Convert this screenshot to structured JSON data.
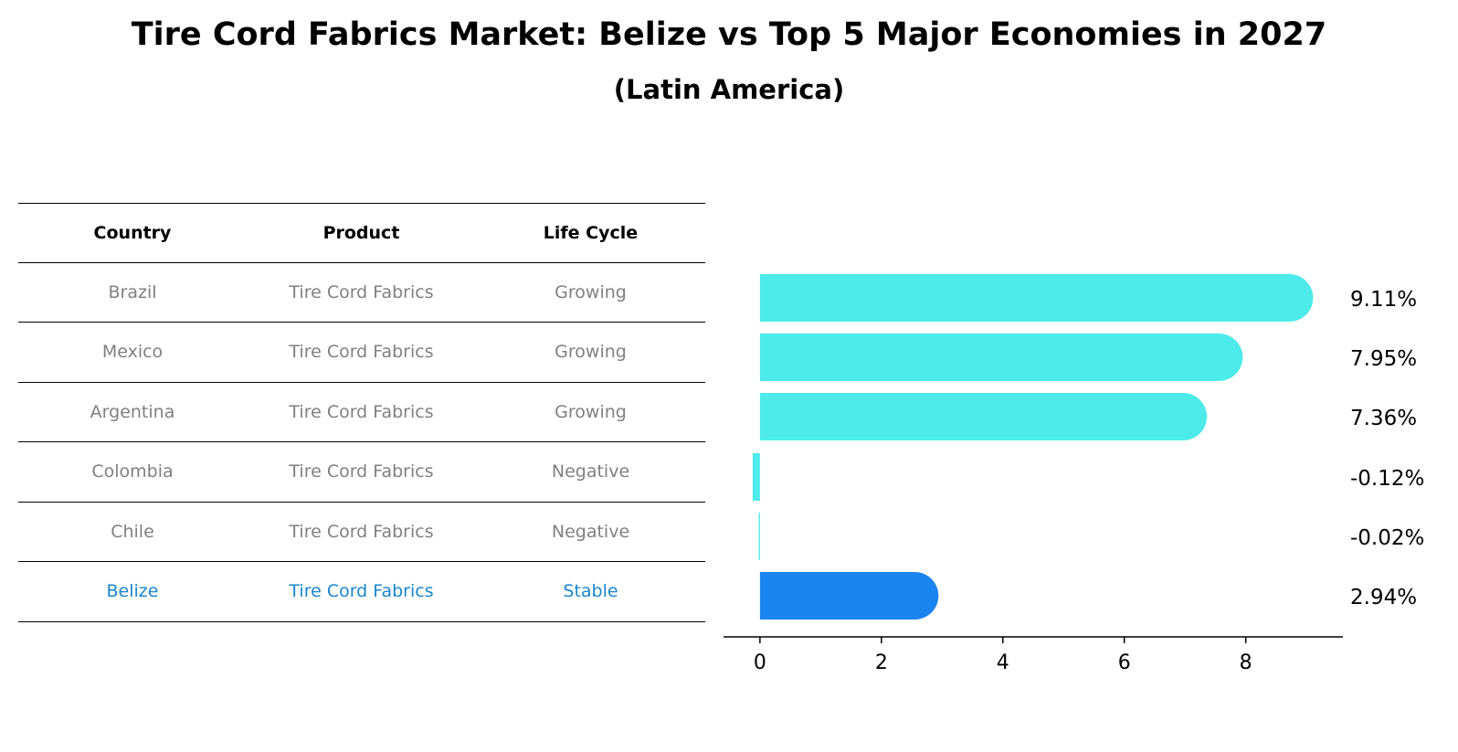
{
  "title": "Tire Cord Fabrics Market: Belize vs Top 5 Major Economies in 2027",
  "subtitle": "(Latin America)",
  "table": {
    "headers": [
      "Country",
      "Product",
      "Life Cycle"
    ],
    "rows": [
      {
        "country": "Brazil",
        "product": "Tire Cord Fabrics",
        "life_cycle": "Growing"
      },
      {
        "country": "Mexico",
        "product": "Tire Cord Fabrics",
        "life_cycle": "Growing"
      },
      {
        "country": "Argentina",
        "product": "Tire Cord Fabrics",
        "life_cycle": "Growing"
      },
      {
        "country": "Colombia",
        "product": "Tire Cord Fabrics",
        "life_cycle": "Negative"
      },
      {
        "country": "Chile",
        "product": "Tire Cord Fabrics",
        "life_cycle": "Negative"
      },
      {
        "country": "Belize",
        "product": "Tire Cord Fabrics",
        "life_cycle": "Stable"
      }
    ]
  },
  "colors": {
    "header_text": "#000000",
    "row_text": "#808080",
    "highlight_text": "#1a87cc",
    "bar_default": "#4deaea",
    "bar_highlight": "#1a84f0"
  },
  "chart_data": {
    "type": "bar",
    "orientation": "horizontal",
    "categories": [
      "Brazil",
      "Mexico",
      "Argentina",
      "Colombia",
      "Chile",
      "Belize"
    ],
    "values": [
      9.11,
      7.95,
      7.36,
      -0.12,
      -0.02,
      2.94
    ],
    "value_labels": [
      "9.11%",
      "7.95%",
      "7.36%",
      "-0.12%",
      "-0.02%",
      "2.94%"
    ],
    "highlight": "Belize",
    "xlim": [
      -0.6,
      9.6
    ],
    "xticks": [
      0,
      2,
      4,
      6,
      8
    ],
    "xlabel": "",
    "ylabel": "",
    "grid": false
  }
}
